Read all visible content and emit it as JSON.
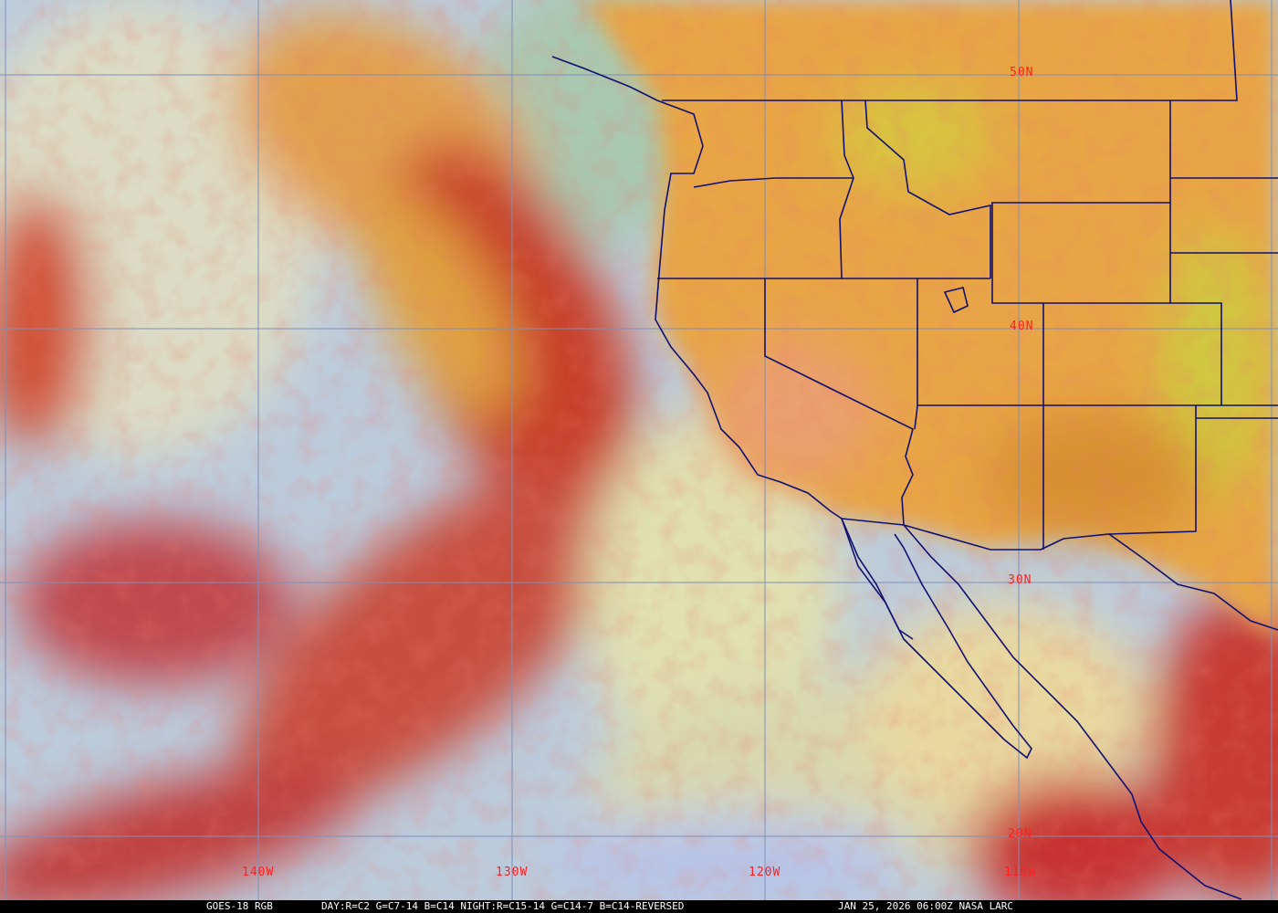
{
  "caption": {
    "satellite": "GOES-18 RGB",
    "recipe": "DAY:R=C2 G=C7-14 B=C14 NIGHT:R=C15-14 G=C14-7 B=C14-REVERSED",
    "timestamp": "JAN 25, 2026 06:00Z NASA LARC"
  },
  "latitude_labels": [
    "50N",
    "40N",
    "30N",
    "20N"
  ],
  "longitude_labels": [
    "140W",
    "130W",
    "120W",
    "110W"
  ],
  "colors": {
    "grid": "#7f8fb8",
    "borders": "#101070",
    "labels": "#ff2020",
    "land": "#e8a040",
    "clear_ocean": "#b7c7e0",
    "cloud_red": "#c03030"
  }
}
